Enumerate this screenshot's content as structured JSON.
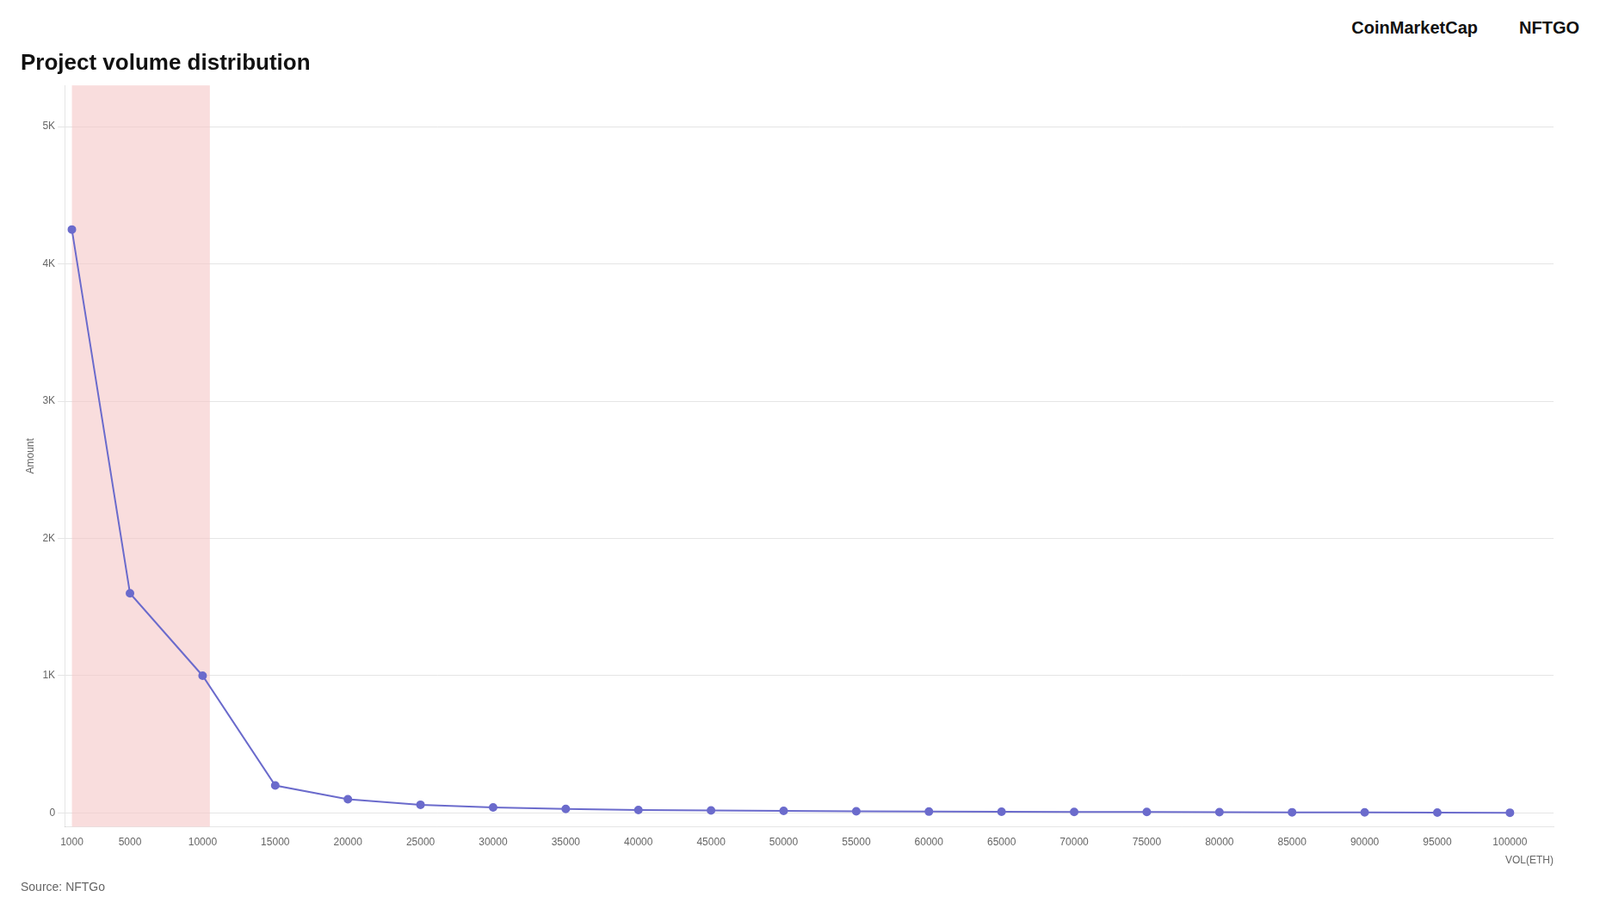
{
  "chart_data": {
    "type": "line",
    "marker": "circle",
    "title": "Project volume distribution",
    "xlabel": "VOL(ETH)",
    "ylabel": "Amount",
    "source": "Source: NFTGo",
    "annotations": [
      "CoinMarketCap",
      "NFTGO"
    ],
    "x": [
      1000,
      5000,
      10000,
      15000,
      20000,
      25000,
      30000,
      35000,
      40000,
      45000,
      50000,
      55000,
      60000,
      65000,
      70000,
      75000,
      80000,
      85000,
      90000,
      95000,
      100000
    ],
    "values": [
      4250,
      1600,
      1000,
      200,
      100,
      60,
      40,
      30,
      22,
      18,
      15,
      12,
      10,
      9,
      8,
      7,
      6,
      5,
      4,
      3,
      2
    ],
    "color": "#6b6bcc",
    "shaded_range": [
      1000,
      10500
    ],
    "xlim": [
      500,
      103000
    ],
    "xticks": [
      1000,
      5000,
      10000,
      15000,
      20000,
      25000,
      30000,
      35000,
      40000,
      45000,
      50000,
      55000,
      60000,
      65000,
      70000,
      75000,
      80000,
      85000,
      90000,
      95000,
      100000
    ],
    "ylim": [
      -100,
      5300
    ],
    "yticks": [
      0,
      {
        "value": 1000,
        "label": "1K"
      },
      {
        "value": 2000,
        "label": "2K"
      },
      {
        "value": 3000,
        "label": "3K"
      },
      {
        "value": 4000,
        "label": "4K"
      },
      {
        "value": 5000,
        "label": "5K"
      }
    ],
    "grid": "y"
  }
}
